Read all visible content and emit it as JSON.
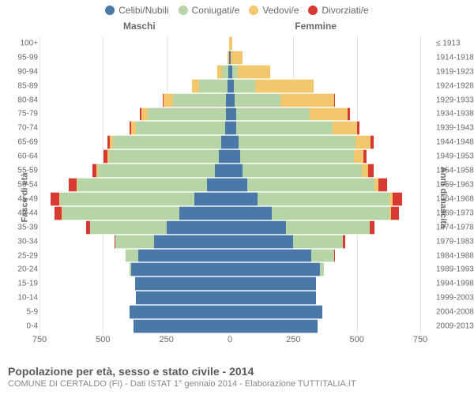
{
  "legend": [
    {
      "label": "Celibi/Nubili",
      "color": "#4b79a7"
    },
    {
      "label": "Coniugati/e",
      "color": "#b7d4a7"
    },
    {
      "label": "Vedovi/e",
      "color": "#f3c76d"
    },
    {
      "label": "Divorziati/e",
      "color": "#d63a32"
    }
  ],
  "headers": {
    "male": "Maschi",
    "female": "Femmine"
  },
  "y_left_title": "Fasce di età",
  "y_right_title": "Anni di nascita",
  "x_ticks": [
    750,
    500,
    250,
    0,
    250,
    500,
    750
  ],
  "max_abs": 750,
  "colors": {
    "celibi": "#4b79a7",
    "coniugati": "#b7d4a7",
    "vedovi": "#f3c76d",
    "divorziati": "#d63a32",
    "grid": "#e5e5e5",
    "bg": "#ffffff",
    "text": "#696969"
  },
  "caption_title": "Popolazione per età, sesso e stato civile - 2014",
  "caption_sub": "COMUNE DI CERTALDO (FI) - Dati ISTAT 1° gennaio 2014 - Elaborazione TUTTITALIA.IT",
  "rows": [
    {
      "age": "100+",
      "birth": "≤ 1913",
      "m": [
        0,
        0,
        4,
        0
      ],
      "f": [
        0,
        0,
        8,
        0
      ]
    },
    {
      "age": "95-99",
      "birth": "1914-1918",
      "m": [
        2,
        2,
        6,
        0
      ],
      "f": [
        2,
        2,
        45,
        0
      ]
    },
    {
      "age": "90-94",
      "birth": "1919-1923",
      "m": [
        6,
        25,
        20,
        0
      ],
      "f": [
        10,
        20,
        130,
        0
      ]
    },
    {
      "age": "85-89",
      "birth": "1924-1928",
      "m": [
        10,
        110,
        30,
        0
      ],
      "f": [
        15,
        85,
        230,
        0
      ]
    },
    {
      "age": "80-84",
      "birth": "1929-1933",
      "m": [
        15,
        210,
        35,
        5
      ],
      "f": [
        20,
        180,
        210,
        5
      ]
    },
    {
      "age": "75-79",
      "birth": "1934-1938",
      "m": [
        15,
        310,
        25,
        5
      ],
      "f": [
        25,
        290,
        150,
        8
      ]
    },
    {
      "age": "70-74",
      "birth": "1939-1943",
      "m": [
        20,
        350,
        18,
        8
      ],
      "f": [
        25,
        380,
        95,
        10
      ]
    },
    {
      "age": "65-69",
      "birth": "1944-1948",
      "m": [
        35,
        425,
        12,
        12
      ],
      "f": [
        35,
        460,
        60,
        12
      ]
    },
    {
      "age": "60-64",
      "birth": "1949-1953",
      "m": [
        45,
        430,
        8,
        15
      ],
      "f": [
        40,
        450,
        35,
        15
      ]
    },
    {
      "age": "55-59",
      "birth": "1954-1958",
      "m": [
        60,
        460,
        5,
        18
      ],
      "f": [
        50,
        470,
        25,
        20
      ]
    },
    {
      "age": "50-54",
      "birth": "1959-1963",
      "m": [
        90,
        510,
        5,
        30
      ],
      "f": [
        70,
        500,
        15,
        35
      ]
    },
    {
      "age": "45-49",
      "birth": "1964-1968",
      "m": [
        140,
        530,
        3,
        35
      ],
      "f": [
        110,
        520,
        10,
        40
      ]
    },
    {
      "age": "40-44",
      "birth": "1969-1973",
      "m": [
        200,
        460,
        2,
        28
      ],
      "f": [
        165,
        465,
        5,
        30
      ]
    },
    {
      "age": "35-39",
      "birth": "1974-1978",
      "m": [
        250,
        300,
        0,
        15
      ],
      "f": [
        220,
        330,
        2,
        18
      ]
    },
    {
      "age": "30-34",
      "birth": "1979-1983",
      "m": [
        300,
        150,
        0,
        5
      ],
      "f": [
        250,
        195,
        0,
        8
      ]
    },
    {
      "age": "25-29",
      "birth": "1984-1988",
      "m": [
        360,
        50,
        0,
        0
      ],
      "f": [
        320,
        90,
        0,
        2
      ]
    },
    {
      "age": "20-24",
      "birth": "1989-1993",
      "m": [
        390,
        5,
        0,
        0
      ],
      "f": [
        355,
        15,
        0,
        0
      ]
    },
    {
      "age": "15-19",
      "birth": "1994-1998",
      "m": [
        375,
        0,
        0,
        0
      ],
      "f": [
        340,
        0,
        0,
        0
      ]
    },
    {
      "age": "10-14",
      "birth": "1999-2003",
      "m": [
        370,
        0,
        0,
        0
      ],
      "f": [
        340,
        0,
        0,
        0
      ]
    },
    {
      "age": "5-9",
      "birth": "2004-2008",
      "m": [
        395,
        0,
        0,
        0
      ],
      "f": [
        365,
        0,
        0,
        0
      ]
    },
    {
      "age": "0-4",
      "birth": "2009-2013",
      "m": [
        380,
        0,
        0,
        0
      ],
      "f": [
        345,
        0,
        0,
        0
      ]
    }
  ]
}
